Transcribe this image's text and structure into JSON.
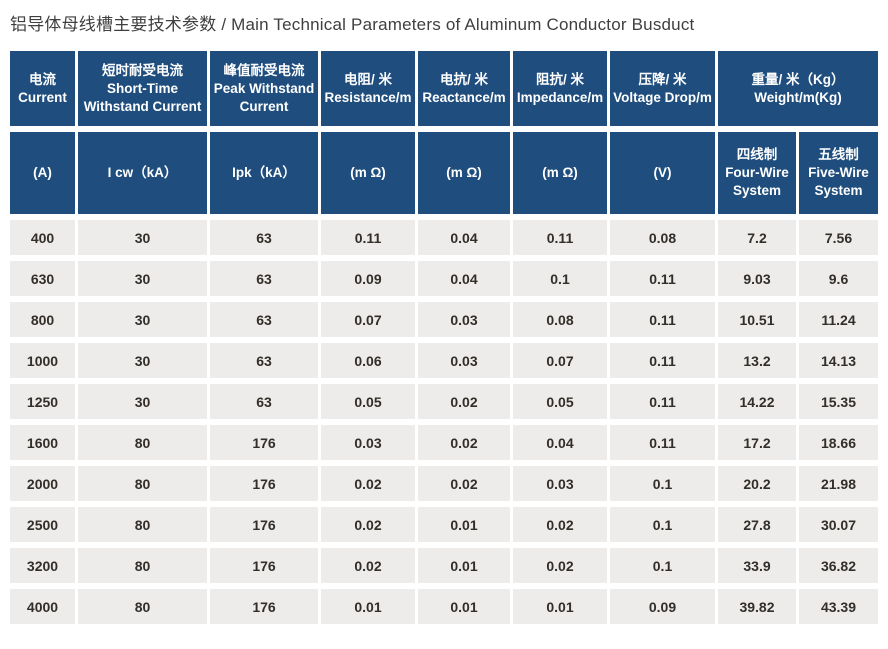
{
  "title": "铝导体母线槽主要技术参数 / Main Technical Parameters of Aluminum Conductor Busduct",
  "colors": {
    "header_bg": "#1f4e7e",
    "row_bg": "#edecea",
    "header_text": "#ffffff",
    "data_text": "#332e29",
    "title_text": "#3f3f3f"
  },
  "table": {
    "header_row1": [
      {
        "zh": "电流",
        "en": "Current"
      },
      {
        "zh": "短时耐受电流",
        "en": "Short-Time Withstand Current"
      },
      {
        "zh": "峰值耐受电流",
        "en": "Peak Withstand Current"
      },
      {
        "zh": "电阻/ 米",
        "en": "Resistance/m"
      },
      {
        "zh": "电抗/ 米",
        "en": "Reactance/m"
      },
      {
        "zh": "阻抗/ 米",
        "en": "Impedance/m"
      },
      {
        "zh": "压降/ 米",
        "en": "Voltage Drop/m"
      },
      {
        "zh": "重量/ 米（Kg）",
        "en": "Weight/m(Kg)"
      }
    ],
    "header_row2": [
      {
        "text": "(A)"
      },
      {
        "text": "I cw（kA）"
      },
      {
        "text": "Ipk（kA）"
      },
      {
        "text": "(m Ω)"
      },
      {
        "text": "(m Ω)"
      },
      {
        "text": "(m Ω)"
      },
      {
        "text": "(V)"
      },
      {
        "zh": "四线制",
        "en": "Four-Wire System"
      },
      {
        "zh": "五线制",
        "en": "Five-Wire System"
      }
    ],
    "column_keys": [
      "current",
      "icw",
      "ipk",
      "resistance",
      "reactance",
      "impedance",
      "voltage-drop",
      "four-wire-weight",
      "five-wire-weight"
    ],
    "rows": [
      [
        "400",
        "30",
        "63",
        "0.11",
        "0.04",
        "0.11",
        "0.08",
        "7.2",
        "7.56"
      ],
      [
        "630",
        "30",
        "63",
        "0.09",
        "0.04",
        "0.1",
        "0.11",
        "9.03",
        "9.6"
      ],
      [
        "800",
        "30",
        "63",
        "0.07",
        "0.03",
        "0.08",
        "0.11",
        "10.51",
        "11.24"
      ],
      [
        "1000",
        "30",
        "63",
        "0.06",
        "0.03",
        "0.07",
        "0.11",
        "13.2",
        "14.13"
      ],
      [
        "1250",
        "30",
        "63",
        "0.05",
        "0.02",
        "0.05",
        "0.11",
        "14.22",
        "15.35"
      ],
      [
        "1600",
        "80",
        "176",
        "0.03",
        "0.02",
        "0.04",
        "0.11",
        "17.2",
        "18.66"
      ],
      [
        "2000",
        "80",
        "176",
        "0.02",
        "0.02",
        "0.03",
        "0.1",
        "20.2",
        "21.98"
      ],
      [
        "2500",
        "80",
        "176",
        "0.02",
        "0.01",
        "0.02",
        "0.1",
        "27.8",
        "30.07"
      ],
      [
        "3200",
        "80",
        "176",
        "0.02",
        "0.01",
        "0.02",
        "0.1",
        "33.9",
        "36.82"
      ],
      [
        "4000",
        "80",
        "176",
        "0.01",
        "0.01",
        "0.01",
        "0.09",
        "39.82",
        "43.39"
      ]
    ]
  }
}
